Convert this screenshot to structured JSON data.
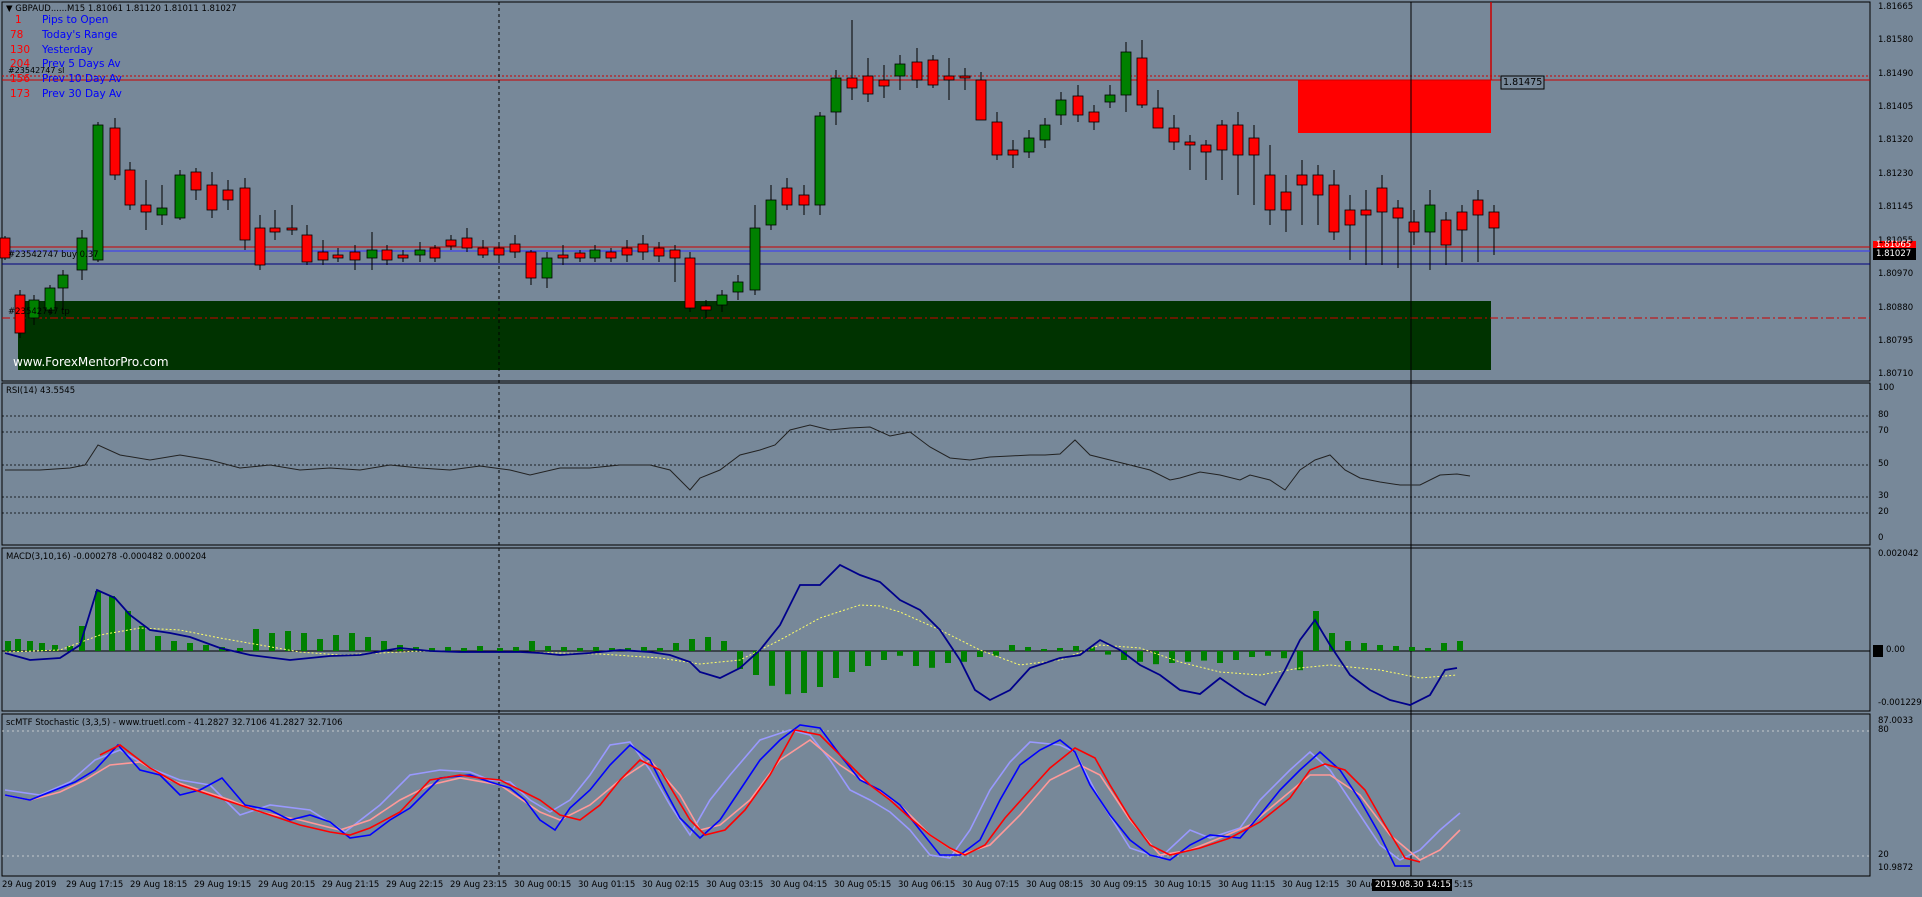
{
  "main": {
    "symbol_header": "GBPAUD......M15  1.81061 1.81120 1.81011 1.81027",
    "info_rows": [
      {
        "value": "1",
        "label": "Pips to Open"
      },
      {
        "value": "78",
        "label": "Today's Range"
      },
      {
        "value": "130",
        "label": "Yesterday"
      },
      {
        "value": "204",
        "label": "Prev 5 Days Av"
      },
      {
        "value": "156",
        "label": "Prev 10 Day Av"
      },
      {
        "value": "173",
        "label": "Prev 30 Day Av"
      }
    ],
    "order_label_top": "#23542747 sl",
    "order_label_buy": "#23542747 buy 0.37",
    "order_label_low": "#23542747 tp",
    "watermark": "www.ForexMentorPro.com",
    "price_ticks": [
      "1.81665",
      "1.81580",
      "1.81490",
      "1.81405",
      "1.81320",
      "1.81230",
      "1.81145",
      "1.81055",
      "1.80970",
      "1.80880",
      "1.80795",
      "1.80710"
    ],
    "price_box": "1.81475",
    "current_price": "1.81027",
    "price_line_tag": "1.81065"
  },
  "rsi": {
    "title": "RSI(14) 43.5545",
    "levels": [
      "100",
      "80",
      "70",
      "50",
      "30",
      "20",
      "0"
    ]
  },
  "macd": {
    "title": "MACD(3,10,16) -0.000278 -0.000482 0.000204",
    "levels": [
      "0.002042",
      "0.00",
      "-0.001229"
    ]
  },
  "stoch": {
    "title": "scMTF Stochastic (3,3,5) - www.truetl.com - 41.2827 32.7106 41.2827 32.7106",
    "levels": [
      "87.0033",
      "80",
      "20",
      "10.9872"
    ]
  },
  "time_axis": {
    "labels": [
      "29 Aug 2019",
      "29 Aug 17:15",
      "29 Aug 18:15",
      "29 Aug 19:15",
      "29 Aug 20:15",
      "29 Aug 21:15",
      "29 Aug 22:15",
      "29 Aug 23:15",
      "30 Aug 00:15",
      "30 Aug 01:15",
      "30 Aug 02:15",
      "30 Aug 03:15",
      "30 Aug 04:15",
      "30 Aug 05:15",
      "30 Aug 06:15",
      "30 Aug 07:15",
      "30 Aug 08:15",
      "30 Aug 09:15",
      "30 Aug 10:15",
      "30 Aug 11:15",
      "30 Aug 12:15",
      "30 Aug",
      "5:15"
    ],
    "cursor_time": "2019.08.30 14:15"
  },
  "colors": {
    "background": "#778899",
    "bull": "#008000",
    "bear": "#ff0000",
    "supply_zone": "#ff0000",
    "demand_zone": "#003300",
    "macd_line": "#00008b",
    "signal_line": "#ffff66",
    "stoch_k": "#0000ff",
    "stoch_d": "#ff0000",
    "stoch_k_mtf": "#9999ff",
    "stoch_d_mtf": "#ff9999"
  }
}
